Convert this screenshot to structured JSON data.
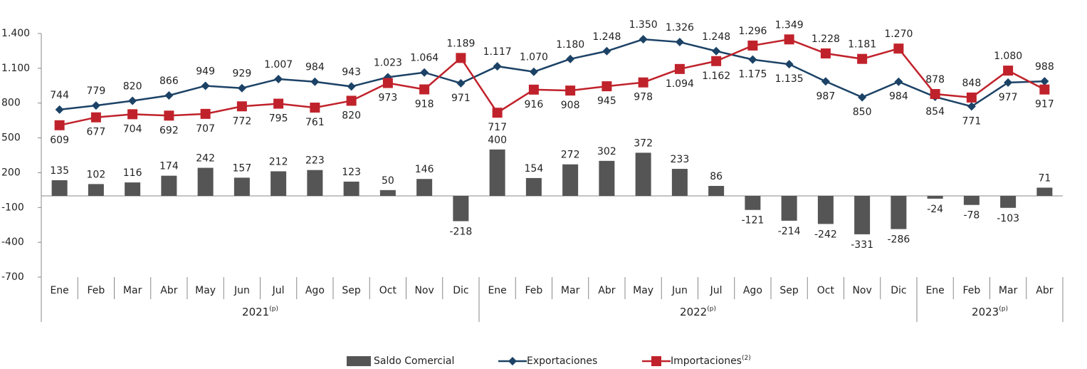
{
  "chart_data": {
    "type": "bar-line",
    "groups": [
      {
        "label": "2021",
        "note": "(p)",
        "categories": [
          "Ene",
          "Feb",
          "Mar",
          "Abr",
          "May",
          "Jun",
          "Jul",
          "Ago",
          "Sep",
          "Oct",
          "Nov",
          "Dic"
        ]
      },
      {
        "label": "2022",
        "note": "(p)",
        "categories": [
          "Ene",
          "Feb",
          "Mar",
          "Abr",
          "May",
          "Jun",
          "Jul",
          "Ago",
          "Sep",
          "Oct",
          "Nov",
          "Dic"
        ]
      },
      {
        "label": "2023",
        "note": "(p)",
        "categories": [
          "Ene",
          "Feb",
          "Mar",
          "Abr"
        ]
      }
    ],
    "series": [
      {
        "name": "Saldo Comercial",
        "type": "bar",
        "color": "#555555",
        "values": [
          135,
          102,
          116,
          174,
          242,
          157,
          212,
          223,
          123,
          50,
          146,
          -218,
          400,
          154,
          272,
          302,
          372,
          233,
          86,
          -121,
          -214,
          -242,
          -331,
          -286,
          -24,
          -78,
          -103,
          71
        ]
      },
      {
        "name": "Exportaciones",
        "type": "line",
        "marker": "diamond",
        "color": "#1c4266",
        "values": [
          744,
          779,
          820,
          866,
          949,
          929,
          1007,
          984,
          943,
          1023,
          1064,
          971,
          1117,
          1070,
          1180,
          1248,
          1350,
          1326,
          1248,
          1175,
          1135,
          987,
          850,
          984,
          854,
          771,
          977,
          988
        ],
        "value_labels": [
          "744",
          "779",
          "820",
          "866",
          "949",
          "929",
          "1.007",
          "984",
          "943",
          "1.023",
          "1.064",
          "971",
          "1.117",
          "1.070",
          "1.180",
          "1.248",
          "1.350",
          "1.326",
          "1.248",
          "1.175",
          "1.135",
          "987",
          "850",
          "984",
          "854",
          "771",
          "977",
          "988"
        ]
      },
      {
        "name": "Importaciones",
        "note": "(2)",
        "type": "line",
        "marker": "square",
        "color": "#c0222b",
        "values": [
          609,
          677,
          704,
          692,
          707,
          772,
          795,
          761,
          820,
          973,
          918,
          1189,
          717,
          916,
          908,
          945,
          978,
          1094,
          1162,
          1296,
          1349,
          1228,
          1181,
          1270,
          878,
          848,
          1080,
          917
        ],
        "value_labels": [
          "609",
          "677",
          "704",
          "692",
          "707",
          "772",
          "795",
          "761",
          "820",
          "973",
          "918",
          "1.189",
          "717",
          "916",
          "908",
          "945",
          "978",
          "1.094",
          "1.162",
          "1.296",
          "1.349",
          "1.228",
          "1.181",
          "1.270",
          "878",
          "848",
          "1.080",
          "917"
        ]
      }
    ],
    "ylim": [
      -700,
      1400
    ],
    "yticks": [
      {
        "value": 1400,
        "label": "1.400"
      },
      {
        "value": 1100,
        "label": "1.100"
      },
      800,
      500,
      200,
      -100,
      -400,
      -700
    ]
  }
}
